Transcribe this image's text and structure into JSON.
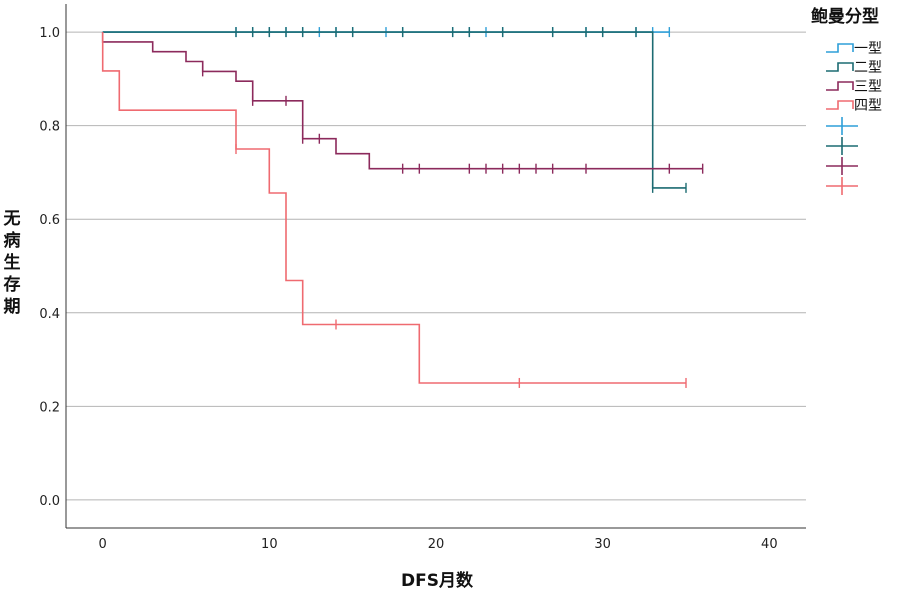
{
  "chart_data": {
    "type": "line",
    "chart_subtype": "kaplan-meier",
    "xlabel": "DFS月数",
    "ylabel": "无病生存期",
    "xlim": [
      -2.2,
      42.2
    ],
    "ylim": [
      -0.06,
      1.06
    ],
    "x_ticks": [
      0,
      10,
      20,
      30,
      40
    ],
    "y_ticks": [
      0.0,
      0.2,
      0.4,
      0.6,
      0.8,
      1.0
    ],
    "y_tick_labels": [
      "0.0",
      "0.2",
      "0.4",
      "0.6",
      "0.8",
      "1.0"
    ],
    "grid": "horizontal",
    "legend": {
      "title": "鲍曼分型",
      "placement": "right",
      "entries": [
        "一型",
        "二型",
        "三型",
        "四型"
      ]
    },
    "series": [
      {
        "name": "一型",
        "color": "#2e9fd8",
        "steps": [
          [
            0,
            1.0
          ],
          [
            34,
            1.0
          ]
        ],
        "censored": [
          [
            8,
            1.0
          ],
          [
            9,
            1.0
          ],
          [
            10,
            1.0
          ],
          [
            11,
            1.0
          ],
          [
            12,
            1.0
          ],
          [
            13,
            1.0
          ],
          [
            14,
            1.0
          ],
          [
            15,
            1.0
          ],
          [
            17,
            1.0
          ],
          [
            18,
            1.0
          ],
          [
            21,
            1.0
          ],
          [
            22,
            1.0
          ],
          [
            23,
            1.0
          ],
          [
            24,
            1.0
          ],
          [
            27,
            1.0
          ],
          [
            29,
            1.0
          ],
          [
            30,
            1.0
          ],
          [
            32,
            1.0
          ],
          [
            33,
            1.0
          ],
          [
            34,
            1.0
          ]
        ]
      },
      {
        "name": "二型",
        "color": "#1c6b72",
        "steps": [
          [
            0,
            1.0
          ],
          [
            33,
            1.0
          ],
          [
            33,
            0.667
          ],
          [
            35,
            0.667
          ]
        ],
        "censored": [
          [
            8,
            1.0
          ],
          [
            9,
            1.0
          ],
          [
            10,
            1.0
          ],
          [
            11,
            1.0
          ],
          [
            12,
            1.0
          ],
          [
            14,
            1.0
          ],
          [
            15,
            1.0
          ],
          [
            18,
            1.0
          ],
          [
            21,
            1.0
          ],
          [
            22,
            1.0
          ],
          [
            24,
            1.0
          ],
          [
            27,
            1.0
          ],
          [
            29,
            1.0
          ],
          [
            30,
            1.0
          ],
          [
            32,
            1.0
          ],
          [
            33,
            0.667
          ],
          [
            35,
            0.667
          ]
        ]
      },
      {
        "name": "三型",
        "color": "#8c2a5c",
        "steps": [
          [
            0,
            1.0
          ],
          [
            0,
            0.979
          ],
          [
            3,
            0.979
          ],
          [
            3,
            0.958
          ],
          [
            5,
            0.958
          ],
          [
            5,
            0.937
          ],
          [
            6,
            0.937
          ],
          [
            6,
            0.916
          ],
          [
            8,
            0.916
          ],
          [
            8,
            0.895
          ],
          [
            9,
            0.895
          ],
          [
            9,
            0.853
          ],
          [
            12,
            0.853
          ],
          [
            12,
            0.772
          ],
          [
            14,
            0.772
          ],
          [
            14,
            0.74
          ],
          [
            16,
            0.74
          ],
          [
            16,
            0.708
          ],
          [
            36,
            0.708
          ]
        ],
        "censored": [
          [
            6,
            0.916
          ],
          [
            9,
            0.853
          ],
          [
            11,
            0.853
          ],
          [
            12,
            0.772
          ],
          [
            13,
            0.772
          ],
          [
            18,
            0.708
          ],
          [
            19,
            0.708
          ],
          [
            22,
            0.708
          ],
          [
            23,
            0.708
          ],
          [
            24,
            0.708
          ],
          [
            25,
            0.708
          ],
          [
            26,
            0.708
          ],
          [
            27,
            0.708
          ],
          [
            29,
            0.708
          ],
          [
            34,
            0.708
          ],
          [
            36,
            0.708
          ]
        ]
      },
      {
        "name": "四型",
        "color": "#ef6a70",
        "steps": [
          [
            0,
            1.0
          ],
          [
            0,
            0.917
          ],
          [
            1,
            0.917
          ],
          [
            1,
            0.833
          ],
          [
            8,
            0.833
          ],
          [
            8,
            0.75
          ],
          [
            10,
            0.75
          ],
          [
            10,
            0.656
          ],
          [
            11,
            0.656
          ],
          [
            11,
            0.469
          ],
          [
            12,
            0.469
          ],
          [
            12,
            0.375
          ],
          [
            19,
            0.375
          ],
          [
            19,
            0.25
          ],
          [
            35,
            0.25
          ]
        ],
        "censored": [
          [
            8,
            0.75
          ],
          [
            14,
            0.375
          ],
          [
            25,
            0.25
          ],
          [
            35,
            0.25
          ]
        ]
      }
    ]
  }
}
